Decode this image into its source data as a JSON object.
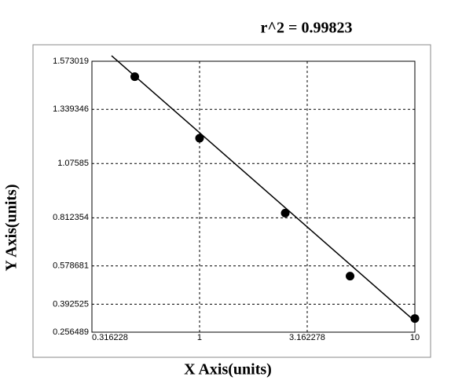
{
  "chart_data": {
    "type": "scatter",
    "title": "r^2 = 0.99823",
    "x_label": "X Axis(units)",
    "y_label": "Y Axis(units)",
    "x": [
      0.5,
      1,
      2.5,
      5,
      10
    ],
    "values": [
      1.498,
      1.199,
      0.835,
      0.529,
      0.323
    ],
    "color": "#000000",
    "fit": {
      "x": [
        0.39,
        10
      ],
      "y": [
        1.6,
        0.31
      ]
    },
    "xscale": "log",
    "xlim": [
      0.316228,
      10
    ],
    "xticks": [
      0.316228,
      1,
      3.162278,
      10
    ],
    "ylim": [
      0.256489,
      1.573019
    ],
    "yticks": [
      0.256489,
      0.392525,
      0.578681,
      0.812354,
      1.07585,
      1.339346,
      1.573019
    ],
    "grid": true
  }
}
